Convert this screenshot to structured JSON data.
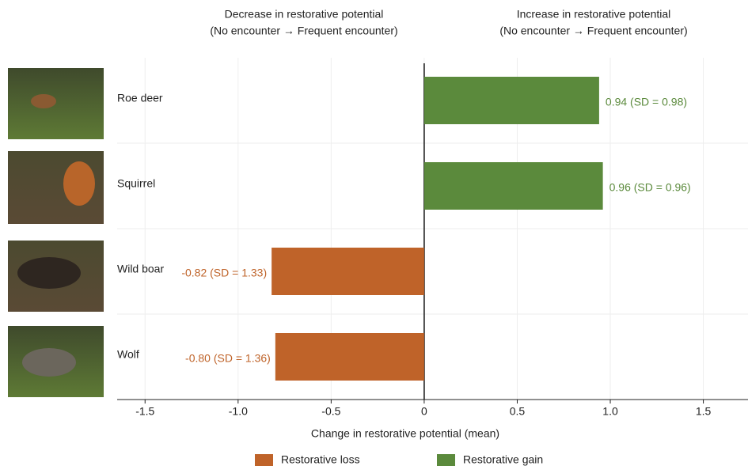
{
  "chart_data": {
    "type": "hbar",
    "annotations": [
      "Decrease in restorative potential",
      "(No encounter → Frequent encounter)",
      "Increase in restorative potential",
      "(No encounter → Frequent encounter)"
    ],
    "xlabel": "Change in restorative potential (mean)",
    "categories": [
      "Roe deer",
      "Squirrel",
      "Wild boar",
      "Wolf"
    ],
    "series": [
      {
        "name": "Restorative loss",
        "color": "#bf6329",
        "values": [
          null,
          null,
          -0.82,
          -0.8
        ],
        "value_labels": [
          null,
          null,
          "-0.82 (SD = 1.33)",
          "-0.80 (SD = 1.36)"
        ]
      },
      {
        "name": "Restorative gain",
        "color": "#5b8a3c",
        "values": [
          0.94,
          0.96,
          null,
          null
        ],
        "value_labels": [
          "0.94 (SD = 0.98)",
          "0.96 (SD = 0.96)",
          null,
          null
        ]
      }
    ],
    "xlim": [
      -1.65,
      1.74
    ],
    "xticks": [
      -1.5,
      {
        "value": -1,
        "label": "-1.0"
      },
      -0.5,
      0,
      0.5,
      {
        "value": 1,
        "label": "1.0"
      },
      1.5
    ],
    "grid": true
  }
}
